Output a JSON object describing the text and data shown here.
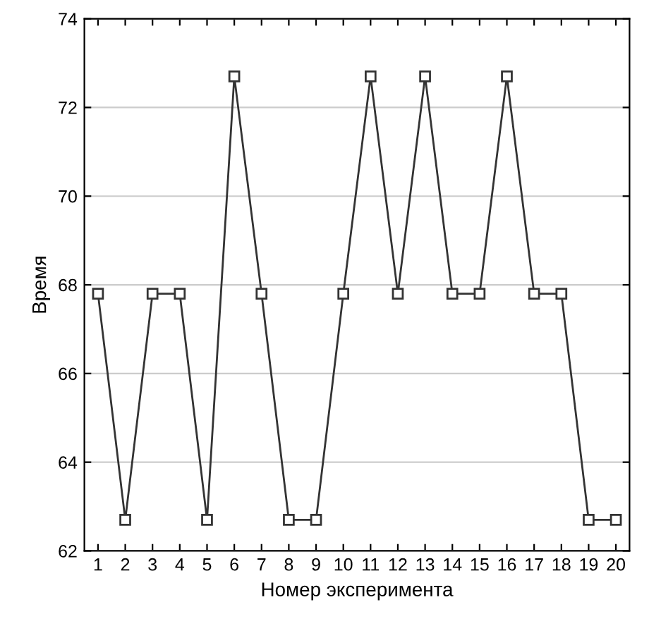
{
  "chart_data": {
    "type": "line",
    "xlabel": "Номер эксперимента",
    "ylabel": "Время",
    "x": [
      1,
      2,
      3,
      4,
      5,
      6,
      7,
      8,
      9,
      10,
      11,
      12,
      13,
      14,
      15,
      16,
      17,
      18,
      19,
      20
    ],
    "series": [
      {
        "color": "#333333",
        "values": [
          67.8,
          62.7,
          67.8,
          67.8,
          62.7,
          72.7,
          67.8,
          62.7,
          62.7,
          67.8,
          72.7,
          67.8,
          72.7,
          67.8,
          67.8,
          72.7,
          67.8,
          67.8,
          62.7,
          62.7
        ]
      }
    ],
    "xlim": [
      0.5,
      20.5
    ],
    "xticks": [
      1,
      2,
      3,
      4,
      5,
      6,
      7,
      8,
      9,
      10,
      11,
      12,
      13,
      14,
      15,
      16,
      17,
      18,
      19,
      20
    ],
    "ylim": [
      62,
      74
    ],
    "yticks": [
      62,
      64,
      66,
      68,
      70,
      72,
      74
    ],
    "grid": "y",
    "marker": "square",
    "line_style": "solid"
  }
}
